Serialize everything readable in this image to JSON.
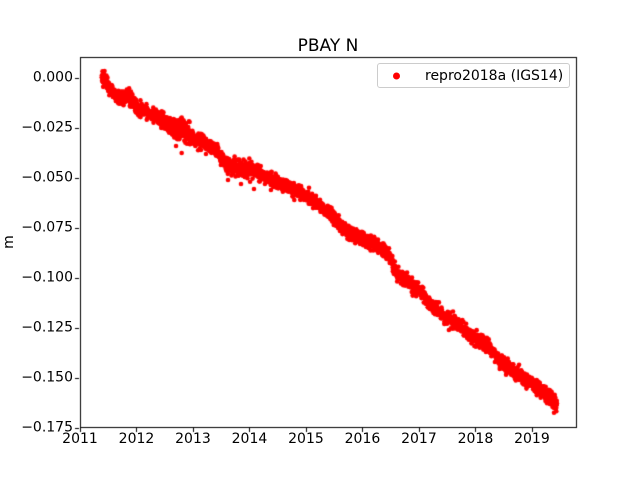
{
  "chart_data": {
    "type": "scatter",
    "title": "PBAY N",
    "xlabel": "",
    "ylabel": "m",
    "grid": false,
    "xlim": [
      2011.0,
      2019.78
    ],
    "ylim": [
      -0.1745,
      0.0105
    ],
    "colors": {
      "marker": "#ff0000",
      "axes": "#000000",
      "text": "#000000",
      "legend_border": "#cccccc",
      "background": "#ffffff"
    },
    "x_ticks": [
      {
        "value": 2011,
        "label": "2011"
      },
      {
        "value": 2012,
        "label": "2012"
      },
      {
        "value": 2013,
        "label": "2013"
      },
      {
        "value": 2014,
        "label": "2014"
      },
      {
        "value": 2015,
        "label": "2015"
      },
      {
        "value": 2016,
        "label": "2016"
      },
      {
        "value": 2017,
        "label": "2017"
      },
      {
        "value": 2018,
        "label": "2018"
      },
      {
        "value": 2019,
        "label": "2019"
      }
    ],
    "y_ticks": [
      {
        "value": 0.0,
        "label": "0.000"
      },
      {
        "value": -0.025,
        "label": "−0.025"
      },
      {
        "value": -0.05,
        "label": "−0.050"
      },
      {
        "value": -0.075,
        "label": "−0.075"
      },
      {
        "value": -0.1,
        "label": "−0.100"
      },
      {
        "value": -0.125,
        "label": "−0.125"
      },
      {
        "value": -0.15,
        "label": "−0.150"
      },
      {
        "value": -0.175,
        "label": "−0.175"
      }
    ],
    "legend": {
      "label": "repro2018a (IGS14)",
      "marker_color": "#ff0000",
      "position": "upper right"
    },
    "series": [
      {
        "name": "repro2018a (IGS14)",
        "color": "#ff0000",
        "marker": "dot",
        "marker_radius_px": 2.3,
        "t_start": 2011.385,
        "t_end": 2019.445,
        "sample_step_years": 0.0027379,
        "noise_std_m": 0.0017,
        "noise_regions": [
          {
            "range": [
              2011.8,
              2011.98
            ],
            "mult": 1.3
          },
          {
            "range": [
              2012.62,
              2012.95
            ],
            "mult": 1.8
          },
          {
            "range": [
              2013.55,
              2014.15
            ],
            "mult": 1.25
          },
          {
            "range": [
              2019.3,
              2019.45
            ],
            "mult": 1.2
          }
        ],
        "trend_points": [
          [
            2011.385,
            0.002
          ],
          [
            2011.45,
            -0.0015
          ],
          [
            2011.52,
            -0.005
          ],
          [
            2011.6,
            -0.008
          ],
          [
            2011.68,
            -0.0105
          ],
          [
            2011.76,
            -0.01
          ],
          [
            2011.84,
            -0.009
          ],
          [
            2011.9,
            -0.011
          ],
          [
            2011.98,
            -0.014
          ],
          [
            2012.06,
            -0.0155
          ],
          [
            2012.15,
            -0.016
          ],
          [
            2012.25,
            -0.0175
          ],
          [
            2012.35,
            -0.019
          ],
          [
            2012.47,
            -0.022
          ],
          [
            2012.6,
            -0.024
          ],
          [
            2012.72,
            -0.0265
          ],
          [
            2012.78,
            -0.025
          ],
          [
            2012.9,
            -0.028
          ],
          [
            2013.0,
            -0.03
          ],
          [
            2013.2,
            -0.0325
          ],
          [
            2013.4,
            -0.0365
          ],
          [
            2013.58,
            -0.043
          ],
          [
            2013.8,
            -0.045
          ],
          [
            2014.0,
            -0.046
          ],
          [
            2014.15,
            -0.047
          ],
          [
            2014.3,
            -0.0495
          ],
          [
            2014.5,
            -0.052
          ],
          [
            2014.7,
            -0.0545
          ],
          [
            2014.9,
            -0.0575
          ],
          [
            2015.0,
            -0.059
          ],
          [
            2015.2,
            -0.0625
          ],
          [
            2015.44,
            -0.0685
          ],
          [
            2015.62,
            -0.0745
          ],
          [
            2015.8,
            -0.0775
          ],
          [
            2016.06,
            -0.081
          ],
          [
            2016.3,
            -0.0845
          ],
          [
            2016.47,
            -0.0885
          ],
          [
            2016.6,
            -0.0975
          ],
          [
            2016.8,
            -0.102
          ],
          [
            2017.0,
            -0.106
          ],
          [
            2017.2,
            -0.113
          ],
          [
            2017.4,
            -0.1185
          ],
          [
            2017.6,
            -0.1215
          ],
          [
            2017.8,
            -0.126
          ],
          [
            2018.0,
            -0.1305
          ],
          [
            2018.2,
            -0.133
          ],
          [
            2018.4,
            -0.1405
          ],
          [
            2018.6,
            -0.145
          ],
          [
            2018.8,
            -0.149
          ],
          [
            2019.0,
            -0.153
          ],
          [
            2019.2,
            -0.157
          ],
          [
            2019.35,
            -0.1605
          ],
          [
            2019.445,
            -0.1635
          ]
        ],
        "outliers": [
          [
            2012.7,
            -0.034
          ],
          [
            2012.8,
            -0.0375
          ],
          [
            2012.76,
            -0.0215
          ],
          [
            2013.14,
            -0.036
          ],
          [
            2013.23,
            -0.038
          ],
          [
            2013.62,
            -0.051
          ],
          [
            2013.85,
            -0.053
          ],
          [
            2014.08,
            -0.0555
          ],
          [
            2014.38,
            -0.056
          ],
          [
            2017.45,
            -0.123
          ],
          [
            2017.53,
            -0.126
          ]
        ]
      }
    ]
  }
}
